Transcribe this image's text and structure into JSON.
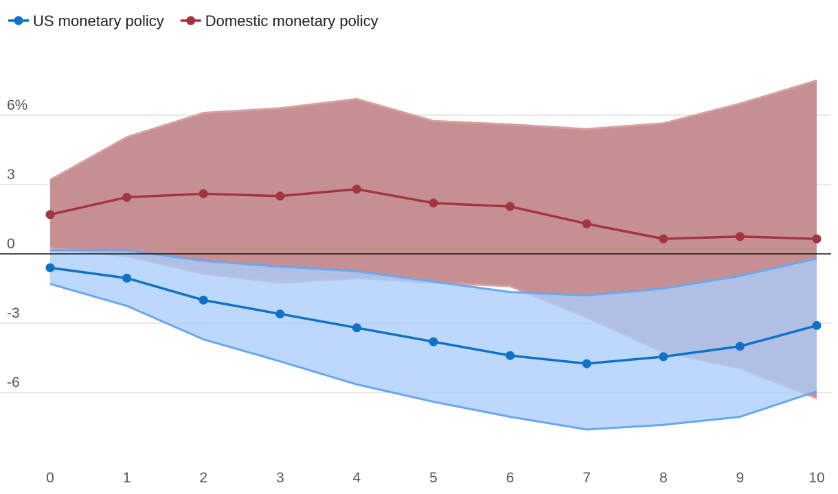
{
  "chart_data": {
    "type": "line",
    "title": "",
    "xlabel": "",
    "ylabel": "",
    "x": [
      0,
      1,
      2,
      3,
      4,
      5,
      6,
      7,
      8,
      9,
      10
    ],
    "x_tick_labels": [
      "0",
      "1",
      "2",
      "3",
      "4",
      "5",
      "6",
      "7",
      "8",
      "9",
      "10"
    ],
    "y_ticks": [
      6,
      3,
      0,
      -3,
      -6
    ],
    "y_tick_labels": [
      "6%",
      "3",
      "0",
      "-3",
      "-6"
    ],
    "ylim": [
      -9.5,
      9.5
    ],
    "xlim": [
      0,
      10
    ],
    "legend_position": "top-left",
    "series": [
      {
        "name": "US monetary policy",
        "color": "#0f72c5",
        "band_color": "#a9cdfb",
        "band_line_color": "#6aa6f0",
        "values": [
          -0.6,
          -1.05,
          -2.0,
          -2.6,
          -3.2,
          -3.8,
          -4.4,
          -4.75,
          -4.45,
          -4.0,
          -3.1
        ],
        "upper": [
          0.15,
          0.15,
          -0.3,
          -0.55,
          -0.75,
          -1.2,
          -1.65,
          -1.8,
          -1.5,
          -0.95,
          -0.2
        ],
        "lower": [
          -1.3,
          -2.25,
          -3.7,
          -4.65,
          -5.65,
          -6.4,
          -7.05,
          -7.6,
          -7.4,
          -7.05,
          -5.95
        ]
      },
      {
        "name": "Domestic monetary policy",
        "color": "#a33441",
        "band_color": "#c69093",
        "band_line_color": "#d9a0a0",
        "values": [
          1.7,
          2.45,
          2.6,
          2.5,
          2.8,
          2.2,
          2.05,
          1.3,
          0.65,
          0.75,
          0.65
        ],
        "upper": [
          3.2,
          5.05,
          6.1,
          6.3,
          6.7,
          5.75,
          5.6,
          5.4,
          5.65,
          6.5,
          7.5
        ],
        "lower": [
          0.25,
          -0.1,
          -0.85,
          -1.25,
          -1.05,
          -1.25,
          -1.4,
          -2.75,
          -4.25,
          -4.95,
          -6.25
        ]
      }
    ]
  }
}
